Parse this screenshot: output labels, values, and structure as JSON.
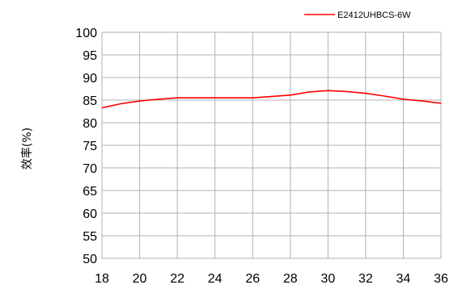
{
  "chart_data": {
    "type": "line",
    "title": "",
    "xlabel": "",
    "ylabel": "效率(%)",
    "xlim": [
      18,
      36
    ],
    "ylim": [
      50,
      100
    ],
    "x_ticks": [
      18,
      20,
      22,
      24,
      26,
      28,
      30,
      32,
      34,
      36
    ],
    "y_ticks": [
      50,
      55,
      60,
      65,
      70,
      75,
      80,
      85,
      90,
      95,
      100
    ],
    "grid": true,
    "legend_position": "top-right",
    "series": [
      {
        "name": "E2412UHBCS-6W",
        "color": "#ff0000",
        "x": [
          18,
          19,
          20,
          21,
          22,
          24,
          26,
          28,
          29,
          30,
          31,
          32,
          33,
          34,
          35,
          36
        ],
        "y": [
          83.3,
          84.2,
          84.8,
          85.2,
          85.5,
          85.5,
          85.5,
          86.1,
          86.8,
          87.1,
          86.9,
          86.5,
          85.9,
          85.2,
          84.8,
          84.3
        ]
      }
    ]
  }
}
